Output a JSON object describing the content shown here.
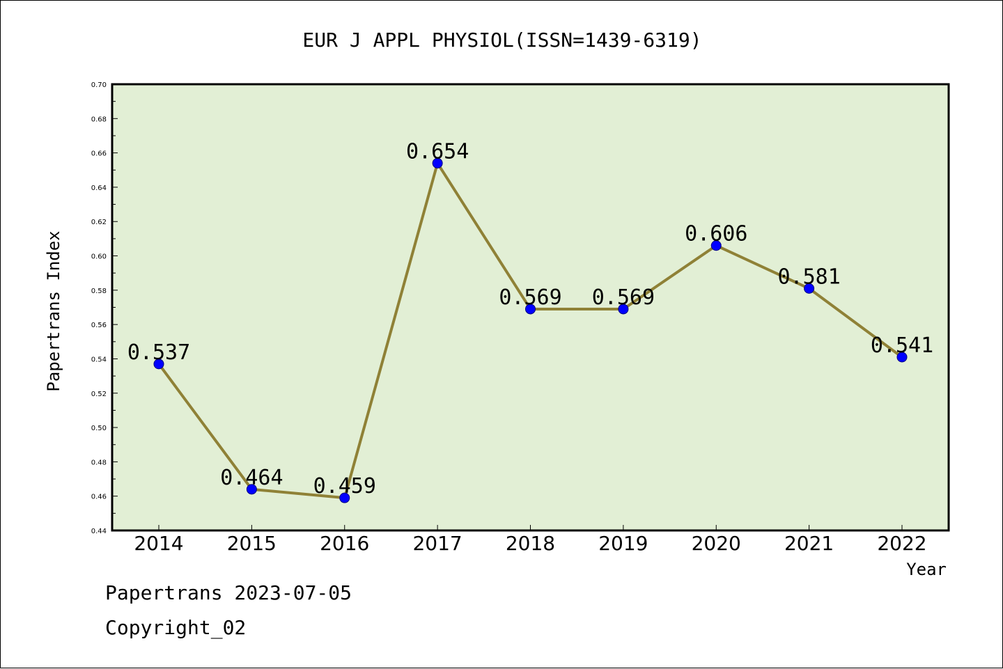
{
  "chart_data": {
    "type": "line",
    "title": "EUR J APPL PHYSIOL(ISSN=1439-6319)",
    "xlabel": "Year",
    "ylabel": "Papertrans Index",
    "categories": [
      "2014",
      "2015",
      "2016",
      "2017",
      "2018",
      "2019",
      "2020",
      "2021",
      "2022"
    ],
    "series": [
      {
        "values": [
          0.537,
          0.464,
          0.459,
          0.654,
          0.569,
          0.569,
          0.606,
          0.581,
          0.541
        ]
      }
    ],
    "data_labels": [
      "0.537",
      "0.464",
      "0.459",
      "0.654",
      "0.569",
      "0.569",
      "0.606",
      "0.581",
      "0.541"
    ],
    "ylim": [
      0.44,
      0.7
    ],
    "yticks": [
      "0.44",
      "0.46",
      "0.48",
      "0.50",
      "0.52",
      "0.54",
      "0.56",
      "0.58",
      "0.60",
      "0.62",
      "0.64",
      "0.66",
      "0.68",
      "0.70"
    ],
    "grid": false,
    "colors": {
      "plot_background": "#e2efd5",
      "line": "#8f8136",
      "marker": "#0000ff"
    }
  },
  "footer": {
    "date_text": "Papertrans 2023-07-05",
    "copyright_text": "Copyright_02"
  }
}
